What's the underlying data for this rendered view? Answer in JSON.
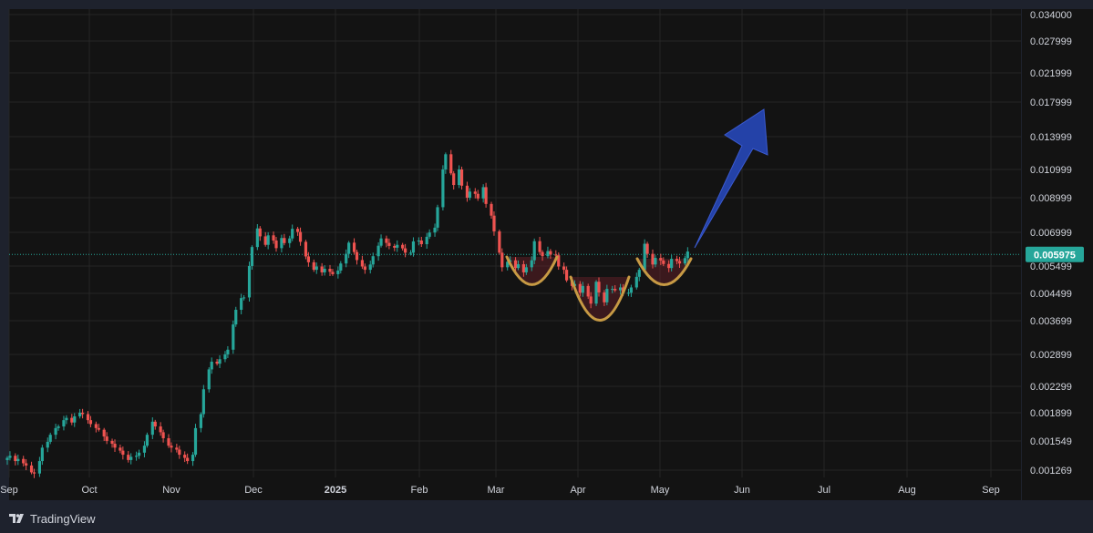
{
  "brand": {
    "name": "TradingView"
  },
  "colors": {
    "up": "#26a69a",
    "down": "#ef5350",
    "background": "#131313",
    "frame": "#1e222d",
    "grid": "#262626",
    "price_line": "#26a69a",
    "price_label_bg": "#26a69a",
    "pattern_stroke": "#c79a44",
    "pattern_fill": "#5c1f27",
    "arrow": "#2442a8"
  },
  "chart_data": {
    "type": "candlestick",
    "x_axis": {
      "tick_labels": [
        "Sep",
        "Oct",
        "Nov",
        "Dec",
        "2025",
        "Feb",
        "Mar",
        "Apr",
        "May",
        "Jun",
        "Jul",
        "Aug",
        "Sep"
      ]
    },
    "y_axis": {
      "scale": "nonlinear",
      "tick_labels": [
        "0.034000",
        "0.027999",
        "0.021999",
        "0.017999",
        "0.013999",
        "0.010999",
        "0.008999",
        "0.006999",
        "0.005499",
        "0.004499",
        "0.003699",
        "0.002899",
        "0.002299",
        "0.001899",
        "0.001549",
        "0.001269"
      ],
      "range": [
        0.00112,
        0.0395
      ]
    },
    "current_price": {
      "value": 0.005975,
      "label": "0.005975"
    },
    "grid": true,
    "series": [
      {
        "type": "candlestick",
        "date_range": [
          "2024-09-01",
          "2025-05-12"
        ],
        "close": [
          0.00138,
          0.0014,
          0.00135,
          0.00137,
          0.00133,
          0.00131,
          0.00125,
          0.00124,
          0.00135,
          0.00148,
          0.00154,
          0.00162,
          0.0017,
          0.00172,
          0.0018,
          0.00183,
          0.00177,
          0.00185,
          0.0019,
          0.00188,
          0.0018,
          0.00175,
          0.0017,
          0.00168,
          0.0016,
          0.00155,
          0.00152,
          0.00148,
          0.00145,
          0.00141,
          0.00136,
          0.00139,
          0.0014,
          0.00143,
          0.0015,
          0.00162,
          0.00178,
          0.00172,
          0.00165,
          0.00158,
          0.0015,
          0.00148,
          0.00146,
          0.00141,
          0.00138,
          0.00135,
          0.00141,
          0.0017,
          0.00188,
          0.00225,
          0.0026,
          0.00275,
          0.00271,
          0.0028,
          0.0029,
          0.003,
          0.0036,
          0.004,
          0.00435,
          0.00437,
          0.0055,
          0.0063,
          0.0072,
          0.0068,
          0.0064,
          0.00685,
          0.0066,
          0.00625,
          0.00672,
          0.00648,
          0.0067,
          0.00718,
          0.00702,
          0.00654,
          0.00589,
          0.00565,
          0.00535,
          0.00548,
          0.00525,
          0.00539,
          0.00527,
          0.00518,
          0.00532,
          0.0056,
          0.006,
          0.0065,
          0.00608,
          0.00574,
          0.00548,
          0.00535,
          0.00556,
          0.0059,
          0.00636,
          0.0067,
          0.00649,
          0.00635,
          0.00627,
          0.0064,
          0.00624,
          0.00605,
          0.00605,
          0.00656,
          0.0066,
          0.00643,
          0.00678,
          0.00699,
          0.00724,
          0.0084,
          0.011,
          0.0123,
          0.0107,
          0.00985,
          0.011,
          0.0098,
          0.009,
          0.0094,
          0.00925,
          0.00895,
          0.0097,
          0.0086,
          0.0079,
          0.00705,
          0.00605,
          0.00545,
          0.00567,
          0.00573,
          0.00542,
          0.00557,
          0.00525,
          0.00545,
          0.00573,
          0.00657,
          0.00608,
          0.0059,
          0.00612,
          0.00597,
          0.00594,
          0.00548,
          0.00535,
          0.00495,
          0.00475,
          0.00482,
          0.00452,
          0.00475,
          0.0044,
          0.00418,
          0.0049,
          0.00453,
          0.00422,
          0.00465,
          0.00465,
          0.0046,
          0.0047,
          0.00452,
          0.00452,
          0.0047,
          0.00508,
          0.00535,
          0.00645,
          0.006,
          0.00556,
          0.00583,
          0.00572,
          0.00558,
          0.00542,
          0.00579,
          0.0057,
          0.0056,
          0.00582,
          0.0061
        ],
        "open_rule": "each candle opens at the previous candle's close"
      }
    ],
    "annotations": [
      {
        "type": "rounded-bottom-highlight",
        "date_start": "2025-03-03",
        "date_end": "2025-03-17"
      },
      {
        "type": "rounded-bottom-highlight",
        "date_start": "2025-03-28",
        "date_end": "2025-04-20"
      },
      {
        "type": "rounded-bottom-highlight",
        "date_start": "2025-04-23",
        "date_end": "2025-05-10"
      },
      {
        "type": "arrow-up"
      }
    ]
  }
}
